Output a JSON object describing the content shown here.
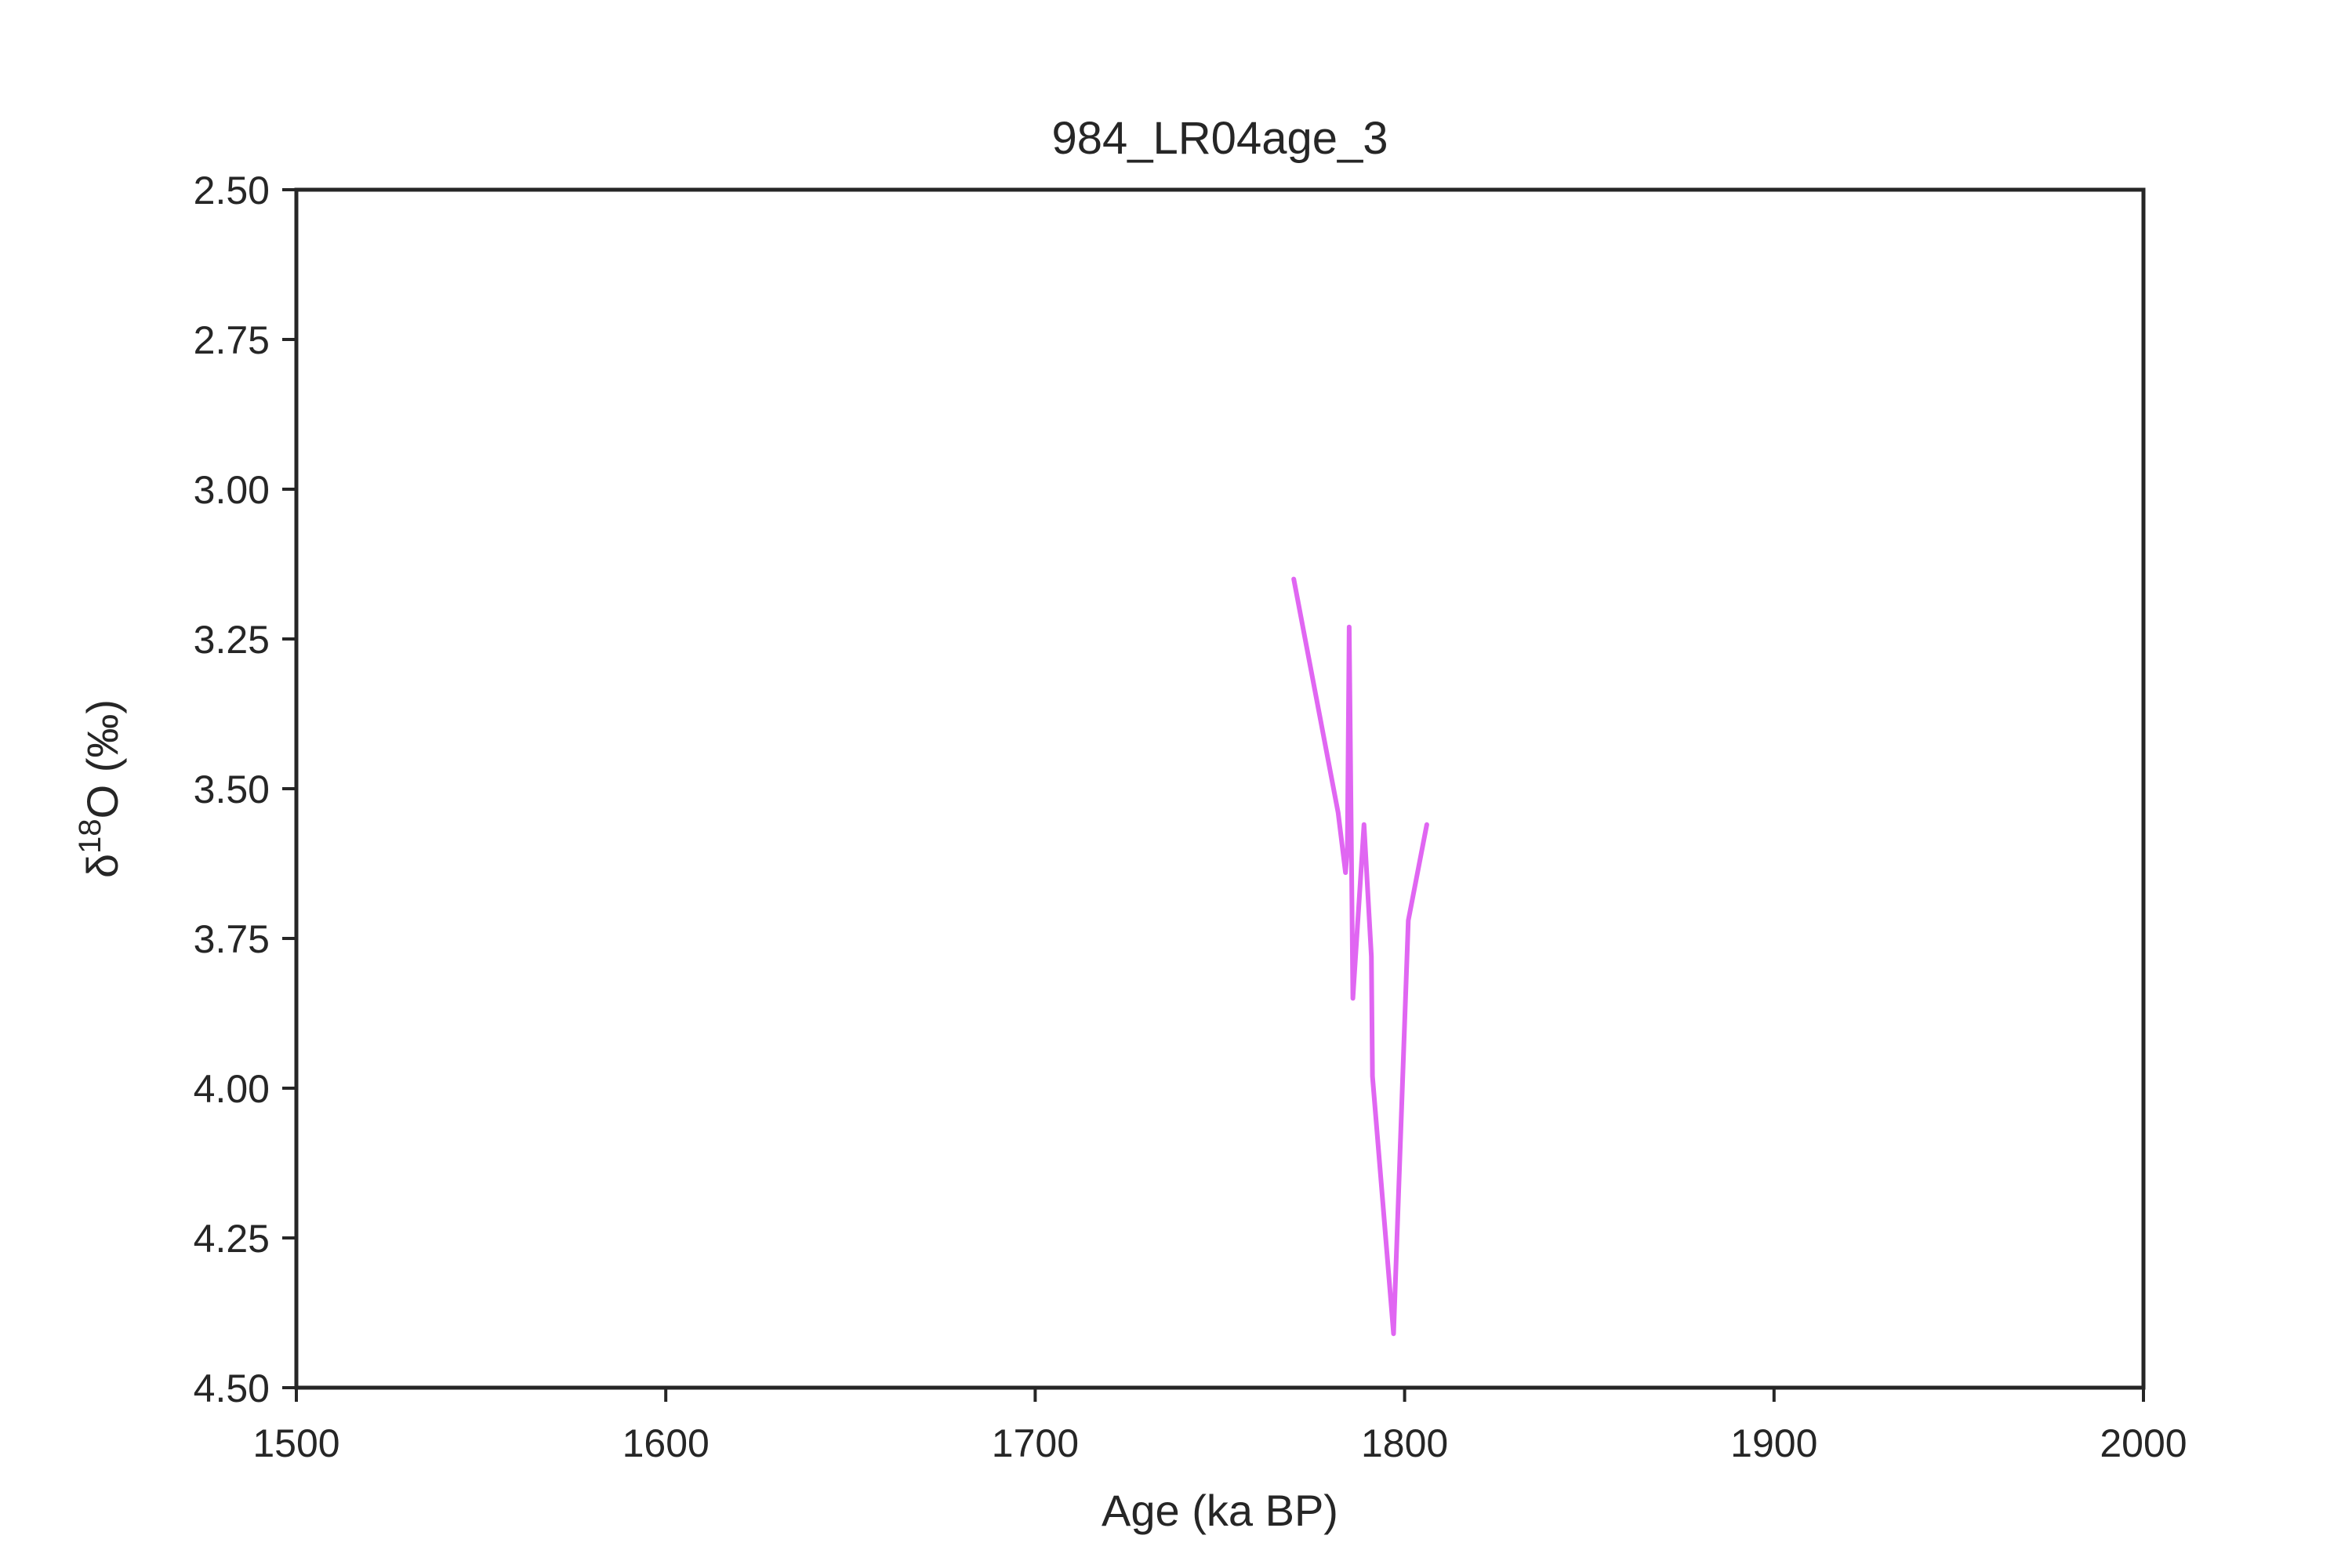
{
  "chart_data": {
    "type": "line",
    "title": "984_LR04age_3",
    "xlabel": "Age (ka BP)",
    "ylabel": "δ18O (‰)",
    "ylabel_parts": {
      "base": "δ",
      "sup": "18",
      "rest": "O (‰)"
    },
    "xlim": [
      1500,
      2000
    ],
    "ylim": [
      2.5,
      4.5
    ],
    "y_inverted": true,
    "grid": false,
    "xticks": [
      1500,
      1600,
      1700,
      1800,
      1900,
      2000
    ],
    "xtick_labels": [
      "1500",
      "1600",
      "1700",
      "1800",
      "1900",
      "2000"
    ],
    "yticks": [
      2.5,
      2.75,
      3.0,
      3.25,
      3.5,
      3.75,
      4.0,
      4.25,
      4.5
    ],
    "ytick_labels": [
      "2.50",
      "2.75",
      "3.00",
      "3.25",
      "3.50",
      "3.75",
      "4.00",
      "4.25",
      "4.50"
    ],
    "series": [
      {
        "color": "#e066f2",
        "x": [
          1770,
          1782,
          1784,
          1784.5,
          1785,
          1786,
          1789,
          1791,
          1791.3,
          1797,
          1801,
          1806
        ],
        "y": [
          3.15,
          3.54,
          3.64,
          3.6,
          3.23,
          3.85,
          3.56,
          3.78,
          3.98,
          4.41,
          3.72,
          3.56
        ]
      }
    ]
  }
}
